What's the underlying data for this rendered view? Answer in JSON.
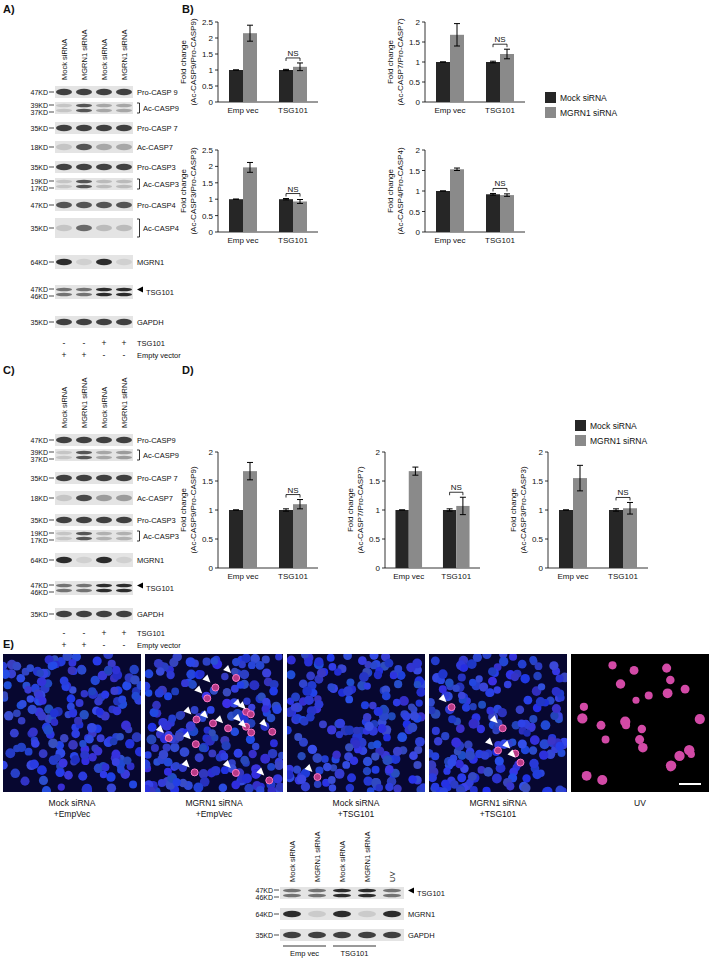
{
  "panel_labels": [
    "A)",
    "B)",
    "C)",
    "D)",
    "E)"
  ],
  "blots": [
    {
      "columns": [
        "Mock siRNA",
        "MGRN1 siRNA",
        "Mock siRNA",
        "MGRN1 siRNA"
      ],
      "rows": [
        {
          "mw": [
            "47KD"
          ],
          "label": "Pro-CASP 9"
        },
        {
          "mw": [
            "39KD",
            "37KD"
          ],
          "label": "Ac-CASP9"
        },
        {
          "mw": [
            "35KD"
          ],
          "label": "Pro-CASP 7"
        },
        {
          "mw": [
            "18KD"
          ],
          "label": "Ac-CASP7"
        },
        {
          "mw": [
            "35KD"
          ],
          "label": "Pro-CASP3"
        },
        {
          "mw": [
            "19KD",
            "17KD"
          ],
          "label": "Ac-CASP3"
        },
        {
          "mw": [
            "47KD"
          ],
          "label": "Pro-CASP4"
        },
        {
          "mw": [
            "35KD"
          ],
          "label": "Ac-CASP4"
        },
        {
          "mw": [
            "64KD"
          ],
          "label": "MGRN1"
        },
        {
          "mw": [
            "47KD",
            "46KD"
          ],
          "label": "TSG101"
        },
        {
          "mw": [
            "35KD"
          ],
          "label": "GAPDH"
        }
      ],
      "conditions": [
        {
          "label": "TSG101",
          "signs": [
            "-",
            "-",
            "+",
            "+"
          ]
        },
        {
          "label": "Empty vector",
          "signs": [
            "+",
            "+",
            "-",
            "-"
          ]
        }
      ]
    },
    {
      "columns": [
        "Mock siRNA",
        "MGRN1 siRNA",
        "Mock siRNA",
        "MGRN1 siRNA"
      ],
      "rows": [
        {
          "mw": [
            "47KD"
          ],
          "label": "Pro-CASP9"
        },
        {
          "mw": [
            "39KD",
            "37KD"
          ],
          "label": "Ac-CASP9"
        },
        {
          "mw": [
            "35KD"
          ],
          "label": "Pro-CASP 7"
        },
        {
          "mw": [
            "18KD"
          ],
          "label": "Ac-CASP7"
        },
        {
          "mw": [
            "35KD"
          ],
          "label": "Pro-CASP3"
        },
        {
          "mw": [
            "19KD",
            "17KD"
          ],
          "label": "Ac-CASP3"
        },
        {
          "mw": [
            "64KD"
          ],
          "label": "MGRN1"
        },
        {
          "mw": [
            "47KD",
            "46KD"
          ],
          "label": "TSG101"
        },
        {
          "mw": [
            "35KD"
          ],
          "label": "GAPDH"
        }
      ],
      "conditions": [
        {
          "label": "TSG101",
          "signs": [
            "-",
            "-",
            "+",
            "+"
          ]
        },
        {
          "label": "Empty vector",
          "signs": [
            "+",
            "+",
            "-",
            "-"
          ]
        }
      ]
    },
    {
      "columns": [
        "Mock siRNA",
        "MGRN1 siRNA",
        "Mock siRNA",
        "MGRN1 siRNA",
        "UV"
      ],
      "rows": [
        {
          "mw": [
            "47KD",
            "46KD"
          ],
          "label": "TSG101"
        },
        {
          "mw": [
            "64KD"
          ],
          "label": "MGRN1"
        },
        {
          "mw": [
            "35KD"
          ],
          "label": "GAPDH"
        }
      ],
      "groups": [
        "Emp vec",
        "TSG101"
      ]
    }
  ],
  "micrographs": [
    {
      "caption": "Mock siRNA\n+EmpVec"
    },
    {
      "caption": "MGRN1 siRNA\n+EmpVec"
    },
    {
      "caption": "Mock siRNA\n+TSG101"
    },
    {
      "caption": "MGRN1 siRNA\n+TSG101"
    },
    {
      "caption": "UV"
    }
  ],
  "chart_data": [
    {
      "type": "bar",
      "ylabel": "Fold change\n(Ac-CASP9/Pro-CASP9)",
      "categories": [
        "Emp vec",
        "TSG101"
      ],
      "series": [
        {
          "name": "Mock siRNA",
          "color": "#262626",
          "values": [
            1,
            1
          ],
          "errors": [
            0,
            0.02
          ]
        },
        {
          "name": "MGRN1 siRNA",
          "color": "#8a8a8a",
          "values": [
            2.15,
            1.1
          ],
          "errors": [
            0.25,
            0.12
          ]
        }
      ],
      "ylim": [
        0,
        2.5
      ],
      "yticks": [
        0,
        0.5,
        1,
        1.5,
        2,
        2.5
      ],
      "grid": false,
      "annotations": [
        "NS"
      ]
    },
    {
      "type": "bar",
      "ylabel": "Fold change\n(Ac-CASP7/Pro-CASP7)",
      "categories": [
        "Emp vec",
        "TSG101"
      ],
      "series": [
        {
          "name": "Mock siRNA",
          "color": "#262626",
          "values": [
            1,
            1
          ],
          "errors": [
            0,
            0.02
          ]
        },
        {
          "name": "MGRN1 siRNA",
          "color": "#8a8a8a",
          "values": [
            1.68,
            1.2
          ],
          "errors": [
            0.28,
            0.12
          ]
        }
      ],
      "ylim": [
        0,
        2
      ],
      "yticks": [
        0,
        0.5,
        1,
        1.5,
        2
      ],
      "grid": false,
      "annotations": [
        "NS"
      ],
      "legend": "right"
    },
    {
      "type": "bar",
      "ylabel": "Fold change\n(Ac-CASP3/Pro-CASP3)",
      "categories": [
        "Emp vec",
        "TSG101"
      ],
      "series": [
        {
          "name": "Mock siRNA",
          "color": "#262626",
          "values": [
            1,
            1
          ],
          "errors": [
            0,
            0.02
          ]
        },
        {
          "name": "MGRN1 siRNA",
          "color": "#8a8a8a",
          "values": [
            1.97,
            0.93
          ],
          "errors": [
            0.15,
            0.06
          ]
        }
      ],
      "ylim": [
        0,
        2.5
      ],
      "yticks": [
        0,
        0.5,
        1,
        1.5,
        2,
        2.5
      ],
      "grid": false,
      "annotations": [
        "NS"
      ]
    },
    {
      "type": "bar",
      "ylabel": "Fold change\n(Ac-CASP4/Pro-CASP4)",
      "categories": [
        "Emp vec",
        "TSG101"
      ],
      "series": [
        {
          "name": "Mock siRNA",
          "color": "#262626",
          "values": [
            1,
            0.92
          ],
          "errors": [
            0,
            0.02
          ]
        },
        {
          "name": "MGRN1 siRNA",
          "color": "#8a8a8a",
          "values": [
            1.53,
            0.9
          ],
          "errors": [
            0.03,
            0.03
          ]
        }
      ],
      "ylim": [
        0,
        2
      ],
      "yticks": [
        0,
        0.5,
        1,
        1.5,
        2
      ],
      "grid": false,
      "annotations": [
        "NS"
      ]
    },
    {
      "type": "bar",
      "ylabel": "Fold change\n(Ac-CASP9/Pro-CASP9)",
      "categories": [
        "Emp vec",
        "TSG101"
      ],
      "series": [
        {
          "name": "Mock siRNA",
          "color": "#262626",
          "values": [
            1,
            1
          ],
          "errors": [
            0,
            0.02
          ]
        },
        {
          "name": "MGRN1 siRNA",
          "color": "#8a8a8a",
          "values": [
            1.67,
            1.1
          ],
          "errors": [
            0.15,
            0.08
          ]
        }
      ],
      "ylim": [
        0,
        2
      ],
      "yticks": [
        0,
        0.5,
        1,
        1.5,
        2
      ],
      "grid": false,
      "annotations": [
        "NS"
      ]
    },
    {
      "type": "bar",
      "ylabel": "Fold change\n(Ac-CASP7/Pro-CASP7)",
      "categories": [
        "Emp vec",
        "TSG101"
      ],
      "series": [
        {
          "name": "Mock siRNA",
          "color": "#262626",
          "values": [
            1,
            1
          ],
          "errors": [
            0,
            0.02
          ]
        },
        {
          "name": "MGRN1 siRNA",
          "color": "#8a8a8a",
          "values": [
            1.67,
            1.07
          ],
          "errors": [
            0.07,
            0.15
          ]
        }
      ],
      "ylim": [
        0,
        2
      ],
      "yticks": [
        0,
        0.5,
        1,
        1.5,
        2
      ],
      "grid": false,
      "annotations": [
        "NS"
      ]
    },
    {
      "type": "bar",
      "ylabel": "Fold change\n(Ac-CASP3/Pro-CASP3)",
      "categories": [
        "Emp vec",
        "TSG101"
      ],
      "series": [
        {
          "name": "Mock siRNA",
          "color": "#262626",
          "values": [
            1,
            1
          ],
          "errors": [
            0,
            0.02
          ]
        },
        {
          "name": "MGRN1 siRNA",
          "color": "#8a8a8a",
          "values": [
            1.55,
            1.03
          ],
          "errors": [
            0.22,
            0.1
          ]
        }
      ],
      "ylim": [
        0,
        2
      ],
      "yticks": [
        0,
        0.5,
        1,
        1.5,
        2
      ],
      "grid": false,
      "annotations": [
        "NS"
      ],
      "legend": "top-right"
    }
  ]
}
